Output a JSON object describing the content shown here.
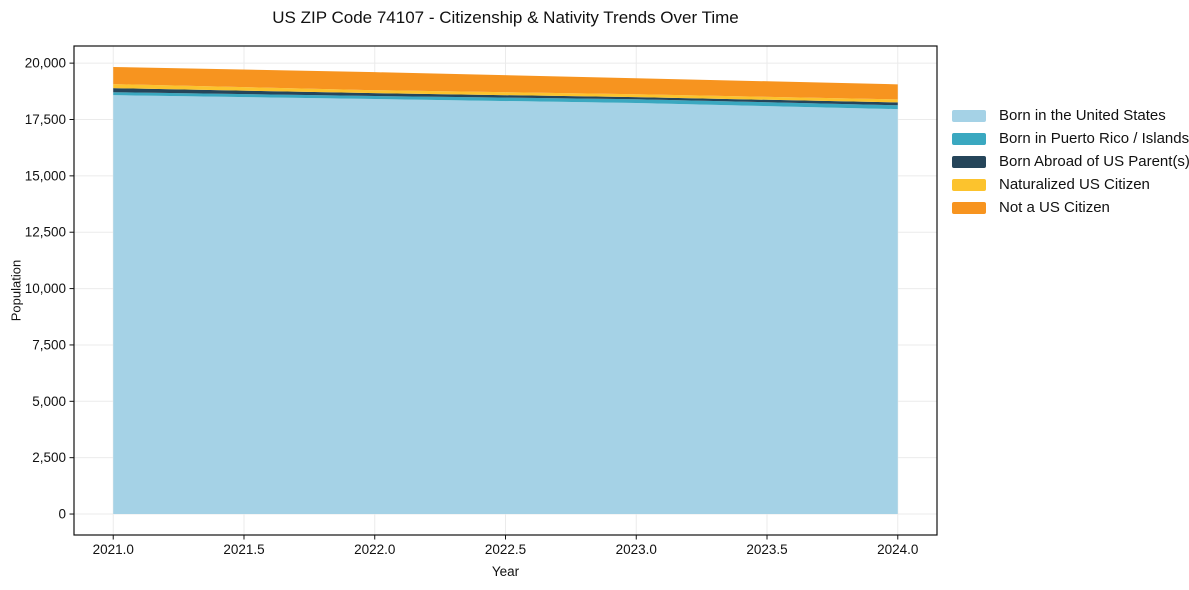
{
  "chart_data": {
    "type": "area",
    "stacked": true,
    "title": "US ZIP Code 74107 - Citizenship & Nativity Trends Over Time",
    "xlabel": "Year",
    "ylabel": "Population",
    "x": [
      2021,
      2022,
      2023,
      2024
    ],
    "series": [
      {
        "name": "Born in the United States",
        "color": "#a5d2e6",
        "values": [
          18580,
          18410,
          18230,
          17960
        ]
      },
      {
        "name": "Born in Puerto Rico / Islands",
        "color": "#3aa8c0",
        "values": [
          130,
          130,
          170,
          170
        ]
      },
      {
        "name": "Born Abroad of US Parent(s)",
        "color": "#25455a",
        "values": [
          180,
          130,
          90,
          130
        ]
      },
      {
        "name": "Naturalized US Citizen",
        "color": "#fcc32d",
        "values": [
          180,
          130,
          130,
          130
        ]
      },
      {
        "name": "Not a US Citizen",
        "color": "#f7941f",
        "values": [
          760,
          800,
          710,
          670
        ]
      }
    ],
    "xlim": [
      2020.85,
      2024.15
    ],
    "ylim": [
      -930,
      20760
    ],
    "xticks": {
      "positions": [
        2021.0,
        2021.5,
        2022.0,
        2022.5,
        2023.0,
        2023.5,
        2024.0
      ],
      "labels": [
        "2021.0",
        "2021.5",
        "2022.0",
        "2022.5",
        "2023.0",
        "2023.5",
        "2024.0"
      ]
    },
    "yticks": {
      "positions": [
        0,
        2500,
        5000,
        7500,
        10000,
        12500,
        15000,
        17500,
        20000
      ],
      "labels": [
        "0",
        "2,500",
        "5,000",
        "7,500",
        "10,000",
        "12,500",
        "15,000",
        "17,500",
        "20,000"
      ]
    },
    "grid": true,
    "legend_position": "right of plot, no frame"
  },
  "colors": {
    "background": "#ffffff",
    "grid": "#ebebeb",
    "spine": "#111111",
    "tick": "#111111",
    "text": "#111111"
  }
}
